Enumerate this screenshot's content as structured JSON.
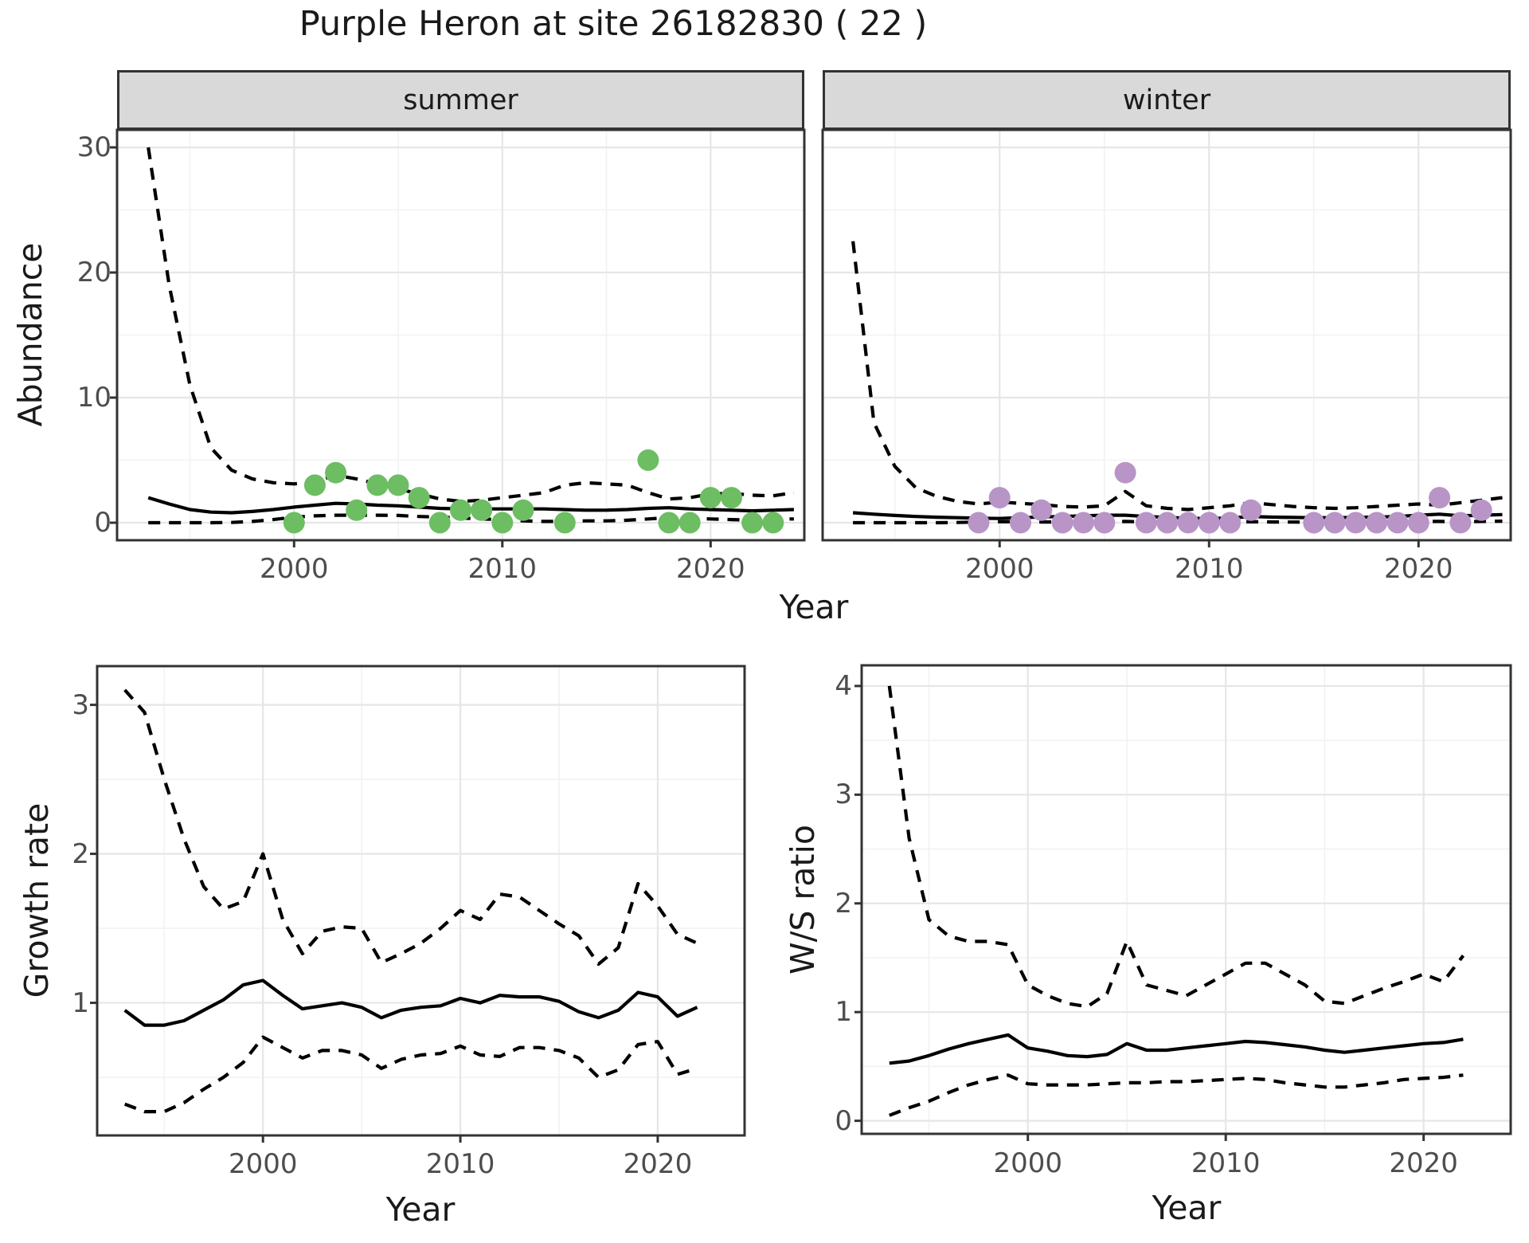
{
  "title": "Purple Heron at site 26182830 ( 22 )",
  "labels": {
    "abundance_axis": "Abundance",
    "year_axis_top": "Year",
    "year_axis_growth": "Year",
    "year_axis_ws": "Year",
    "growth_axis": "Growth rate",
    "ws_axis": "W/S ratio",
    "facet_summer": "summer",
    "facet_winter": "winter"
  },
  "colors": {
    "summer_point": "#6dbd63",
    "winter_point": "#b894c7",
    "line": "#000000",
    "strip_fill": "#d9d9d9",
    "panel_border": "#333333",
    "grid_major": "#e6e6e6",
    "grid_minor": "#f2f2f2",
    "tick_text": "#4d4d4d"
  },
  "chart_data": [
    {
      "id": "summer",
      "type": "line",
      "facet_label": "summer",
      "ylabel": "Abundance",
      "xlabel": "Year",
      "xlim": [
        1991.5,
        2024.5
      ],
      "ylim": [
        -1.4,
        31.4
      ],
      "x_ticks": [
        2000,
        2010,
        2020
      ],
      "x_minor": [
        1995,
        2005,
        2015
      ],
      "y_ticks": [
        0,
        10,
        20,
        30
      ],
      "y_minor": [
        5,
        15,
        25
      ],
      "grid": true,
      "legend": "none",
      "series": [
        {
          "name": "upper_ci",
          "style": "dashed",
          "x": [
            1993,
            1994,
            1995,
            1996,
            1997,
            1998,
            1999,
            2000,
            2001,
            2002,
            2003,
            2004,
            2005,
            2006,
            2007,
            2008,
            2009,
            2010,
            2011,
            2012,
            2013,
            2014,
            2015,
            2016,
            2017,
            2018,
            2019,
            2020,
            2021,
            2022,
            2023,
            2024
          ],
          "y": [
            30,
            19,
            11,
            6,
            4.2,
            3.5,
            3.2,
            3.1,
            3.3,
            3.8,
            3.5,
            3.1,
            2.7,
            2.3,
            1.9,
            1.7,
            1.8,
            2.0,
            2.2,
            2.4,
            3.0,
            3.2,
            3.1,
            3.0,
            2.4,
            1.9,
            2.0,
            2.3,
            2.35,
            2.2,
            2.15,
            2.4
          ]
        },
        {
          "name": "fit",
          "style": "solid",
          "x": [
            1993,
            1994,
            1995,
            1996,
            1997,
            1998,
            1999,
            2000,
            2001,
            2002,
            2003,
            2004,
            2005,
            2006,
            2007,
            2008,
            2009,
            2010,
            2011,
            2012,
            2013,
            2014,
            2015,
            2016,
            2017,
            2018,
            2019,
            2020,
            2021,
            2022,
            2023,
            2024
          ],
          "y": [
            2.0,
            1.5,
            1.05,
            0.85,
            0.8,
            0.9,
            1.05,
            1.25,
            1.4,
            1.55,
            1.5,
            1.4,
            1.35,
            1.25,
            1.15,
            1.1,
            1.1,
            1.1,
            1.1,
            1.1,
            1.05,
            1.0,
            1.0,
            1.05,
            1.15,
            1.2,
            1.1,
            1.05,
            1.0,
            0.95,
            1.0,
            1.05
          ]
        },
        {
          "name": "lower_ci",
          "style": "dashed",
          "x": [
            1993,
            1994,
            1995,
            1996,
            1997,
            1998,
            1999,
            2000,
            2001,
            2002,
            2003,
            2004,
            2005,
            2006,
            2007,
            2008,
            2009,
            2010,
            2011,
            2012,
            2013,
            2014,
            2015,
            2016,
            2017,
            2018,
            2019,
            2020,
            2021,
            2022,
            2023,
            2024
          ],
          "y": [
            0,
            0,
            0,
            0,
            0.02,
            0.1,
            0.25,
            0.45,
            0.55,
            0.6,
            0.6,
            0.6,
            0.58,
            0.5,
            0.45,
            0.38,
            0.3,
            0.25,
            0.15,
            0.1,
            0.1,
            0.15,
            0.15,
            0.2,
            0.3,
            0.4,
            0.35,
            0.3,
            0.25,
            0.2,
            0.3,
            0.3
          ]
        }
      ],
      "points": {
        "color": "#6dbd63",
        "x": [
          2000,
          2001,
          2002,
          2003,
          2004,
          2005,
          2006,
          2007,
          2008,
          2009,
          2010,
          2011,
          2013,
          2017,
          2018,
          2019,
          2020,
          2021,
          2022,
          2023
        ],
        "y": [
          0,
          3,
          4,
          1,
          3,
          3,
          2,
          0,
          1,
          1,
          0,
          1,
          0,
          5,
          0,
          0,
          2,
          2,
          0,
          0
        ]
      }
    },
    {
      "id": "winter",
      "type": "line",
      "facet_label": "winter",
      "ylabel": "Abundance",
      "xlabel": "Year",
      "xlim": [
        1991.55,
        2024.4
      ],
      "ylim": [
        -1.4,
        31.4
      ],
      "x_ticks": [
        2000,
        2010,
        2020
      ],
      "x_minor": [
        1995,
        2005,
        2015
      ],
      "y_ticks": [
        0,
        10,
        20,
        30
      ],
      "y_minor": [
        5,
        15,
        25
      ],
      "grid": true,
      "legend": "none",
      "series": [
        {
          "name": "upper_ci",
          "style": "dashed",
          "x": [
            1993,
            1994,
            1995,
            1996,
            1997,
            1998,
            1999,
            2000,
            2001,
            2002,
            2003,
            2004,
            2005,
            2006,
            2007,
            2008,
            2009,
            2010,
            2011,
            2012,
            2013,
            2014,
            2015,
            2016,
            2017,
            2018,
            2019,
            2020,
            2021,
            2022,
            2023,
            2024
          ],
          "y": [
            22.5,
            8,
            4.5,
            2.8,
            2.1,
            1.7,
            1.5,
            1.65,
            1.55,
            1.45,
            1.3,
            1.25,
            1.35,
            2.5,
            1.35,
            1.15,
            1.05,
            1.2,
            1.35,
            1.6,
            1.45,
            1.3,
            1.2,
            1.15,
            1.2,
            1.3,
            1.4,
            1.5,
            1.4,
            1.6,
            1.8,
            2.0
          ]
        },
        {
          "name": "fit",
          "style": "solid",
          "x": [
            1993,
            1994,
            1995,
            1996,
            1997,
            1998,
            1999,
            2000,
            2001,
            2002,
            2003,
            2004,
            2005,
            2006,
            2007,
            2008,
            2009,
            2010,
            2011,
            2012,
            2013,
            2014,
            2015,
            2016,
            2017,
            2018,
            2019,
            2020,
            2021,
            2022,
            2023,
            2024
          ],
          "y": [
            0.8,
            0.68,
            0.58,
            0.5,
            0.44,
            0.4,
            0.36,
            0.34,
            0.4,
            0.46,
            0.5,
            0.55,
            0.6,
            0.6,
            0.5,
            0.42,
            0.35,
            0.33,
            0.38,
            0.5,
            0.45,
            0.42,
            0.4,
            0.4,
            0.42,
            0.45,
            0.5,
            0.6,
            0.68,
            0.55,
            0.6,
            0.65
          ]
        },
        {
          "name": "lower_ci",
          "style": "dashed",
          "x": [
            1993,
            1994,
            1995,
            1996,
            1997,
            1998,
            1999,
            2000,
            2001,
            2002,
            2003,
            2004,
            2005,
            2006,
            2007,
            2008,
            2009,
            2010,
            2011,
            2012,
            2013,
            2014,
            2015,
            2016,
            2017,
            2018,
            2019,
            2020,
            2021,
            2022,
            2023,
            2024
          ],
          "y": [
            0,
            0,
            0,
            0,
            0,
            0.02,
            0.05,
            0.08,
            0.08,
            0.06,
            0.05,
            0.05,
            0.06,
            0.1,
            0.06,
            0.04,
            0.03,
            0.03,
            0.05,
            0.08,
            0.06,
            0.05,
            0.04,
            0.04,
            0.05,
            0.06,
            0.08,
            0.1,
            0.1,
            0.08,
            0.1,
            0.12
          ]
        }
      ],
      "points": {
        "color": "#b894c7",
        "x": [
          1999,
          2000,
          2001,
          2002,
          2003,
          2004,
          2005,
          2006,
          2007,
          2008,
          2009,
          2010,
          2011,
          2012,
          2015,
          2016,
          2017,
          2018,
          2019,
          2020,
          2021,
          2022,
          2023
        ],
        "y": [
          0,
          2,
          0,
          1,
          0,
          0,
          0,
          4,
          0,
          0,
          0,
          0,
          0,
          1,
          0,
          0,
          0,
          0,
          0,
          0,
          2,
          0,
          1
        ]
      }
    },
    {
      "id": "growth",
      "type": "line",
      "ylabel": "Growth rate",
      "xlabel": "Year",
      "xlim": [
        1991.6,
        2024.4
      ],
      "ylim": [
        0.11,
        3.26
      ],
      "x_ticks": [
        2000,
        2010,
        2020
      ],
      "x_minor": [
        1995,
        2005,
        2015
      ],
      "y_ticks": [
        1,
        2,
        3
      ],
      "y_minor": [
        0.5,
        1.5,
        2.5
      ],
      "grid": true,
      "legend": "none",
      "series": [
        {
          "name": "upper_ci",
          "style": "dashed",
          "x": [
            1993,
            1994,
            1995,
            1996,
            1997,
            1998,
            1999,
            2000,
            2001,
            2002,
            2003,
            2004,
            2005,
            2006,
            2007,
            2008,
            2009,
            2010,
            2011,
            2012,
            2013,
            2014,
            2015,
            2016,
            2017,
            2018,
            2019,
            2020,
            2021,
            2022
          ],
          "y": [
            3.1,
            2.95,
            2.5,
            2.1,
            1.78,
            1.63,
            1.68,
            2.0,
            1.56,
            1.33,
            1.48,
            1.51,
            1.5,
            1.27,
            1.33,
            1.4,
            1.5,
            1.62,
            1.56,
            1.73,
            1.71,
            1.62,
            1.53,
            1.45,
            1.26,
            1.37,
            1.8,
            1.65,
            1.46,
            1.4
          ]
        },
        {
          "name": "fit",
          "style": "solid",
          "x": [
            1993,
            1994,
            1995,
            1996,
            1997,
            1998,
            1999,
            2000,
            2001,
            2002,
            2003,
            2004,
            2005,
            2006,
            2007,
            2008,
            2009,
            2010,
            2011,
            2012,
            2013,
            2014,
            2015,
            2016,
            2017,
            2018,
            2019,
            2020,
            2021,
            2022
          ],
          "y": [
            0.95,
            0.85,
            0.85,
            0.88,
            0.95,
            1.02,
            1.12,
            1.15,
            1.05,
            0.96,
            0.98,
            1.0,
            0.97,
            0.9,
            0.95,
            0.97,
            0.98,
            1.03,
            1.0,
            1.05,
            1.04,
            1.04,
            1.01,
            0.94,
            0.9,
            0.95,
            1.07,
            1.04,
            0.91,
            0.97
          ]
        },
        {
          "name": "lower_ci",
          "style": "dashed",
          "x": [
            1993,
            1994,
            1995,
            1996,
            1997,
            1998,
            1999,
            2000,
            2001,
            2002,
            2003,
            2004,
            2005,
            2006,
            2007,
            2008,
            2009,
            2010,
            2011,
            2012,
            2013,
            2014,
            2015,
            2016,
            2017,
            2018,
            2019,
            2020,
            2021,
            2022
          ],
          "y": [
            0.32,
            0.27,
            0.27,
            0.33,
            0.42,
            0.5,
            0.6,
            0.77,
            0.7,
            0.63,
            0.68,
            0.68,
            0.65,
            0.56,
            0.62,
            0.65,
            0.66,
            0.71,
            0.65,
            0.64,
            0.7,
            0.7,
            0.68,
            0.63,
            0.5,
            0.55,
            0.72,
            0.74,
            0.52,
            0.56
          ]
        }
      ]
    },
    {
      "id": "ws",
      "type": "line",
      "ylabel": "W/S ratio",
      "xlabel": "Year",
      "xlim": [
        1991.6,
        2024.4
      ],
      "ylim": [
        -0.12,
        4.19
      ],
      "x_ticks": [
        2000,
        2010,
        2020
      ],
      "x_minor": [
        1995,
        2005,
        2015
      ],
      "y_ticks": [
        0,
        1,
        2,
        3,
        4
      ],
      "y_minor": [
        0.5,
        1.5,
        2.5,
        3.5
      ],
      "grid": true,
      "legend": "none",
      "series": [
        {
          "name": "upper_ci",
          "style": "dashed",
          "x": [
            1993,
            1994,
            1995,
            1996,
            1997,
            1998,
            1999,
            2000,
            2001,
            2002,
            2003,
            2004,
            2005,
            2006,
            2007,
            2008,
            2009,
            2010,
            2011,
            2012,
            2013,
            2014,
            2015,
            2016,
            2017,
            2018,
            2019,
            2020,
            2021,
            2022
          ],
          "y": [
            4.0,
            2.6,
            1.85,
            1.7,
            1.65,
            1.65,
            1.62,
            1.25,
            1.15,
            1.08,
            1.05,
            1.17,
            1.65,
            1.25,
            1.2,
            1.15,
            1.25,
            1.35,
            1.45,
            1.45,
            1.35,
            1.25,
            1.1,
            1.08,
            1.15,
            1.22,
            1.28,
            1.35,
            1.28,
            1.52
          ]
        },
        {
          "name": "fit",
          "style": "solid",
          "x": [
            1993,
            1994,
            1995,
            1996,
            1997,
            1998,
            1999,
            2000,
            2001,
            2002,
            2003,
            2004,
            2005,
            2006,
            2007,
            2008,
            2009,
            2010,
            2011,
            2012,
            2013,
            2014,
            2015,
            2016,
            2017,
            2018,
            2019,
            2020,
            2021,
            2022
          ],
          "y": [
            0.53,
            0.55,
            0.6,
            0.66,
            0.71,
            0.75,
            0.79,
            0.67,
            0.64,
            0.6,
            0.59,
            0.61,
            0.71,
            0.65,
            0.65,
            0.67,
            0.69,
            0.71,
            0.73,
            0.72,
            0.7,
            0.68,
            0.65,
            0.63,
            0.65,
            0.67,
            0.69,
            0.71,
            0.72,
            0.75
          ]
        },
        {
          "name": "lower_ci",
          "style": "dashed",
          "x": [
            1993,
            1994,
            1995,
            1996,
            1997,
            1998,
            1999,
            2000,
            2001,
            2002,
            2003,
            2004,
            2005,
            2006,
            2007,
            2008,
            2009,
            2010,
            2011,
            2012,
            2013,
            2014,
            2015,
            2016,
            2017,
            2018,
            2019,
            2020,
            2021,
            2022
          ],
          "y": [
            0.05,
            0.12,
            0.18,
            0.26,
            0.33,
            0.38,
            0.42,
            0.34,
            0.33,
            0.33,
            0.33,
            0.34,
            0.35,
            0.35,
            0.36,
            0.36,
            0.37,
            0.38,
            0.39,
            0.38,
            0.35,
            0.33,
            0.31,
            0.31,
            0.33,
            0.35,
            0.38,
            0.39,
            0.4,
            0.42
          ]
        }
      ]
    }
  ]
}
